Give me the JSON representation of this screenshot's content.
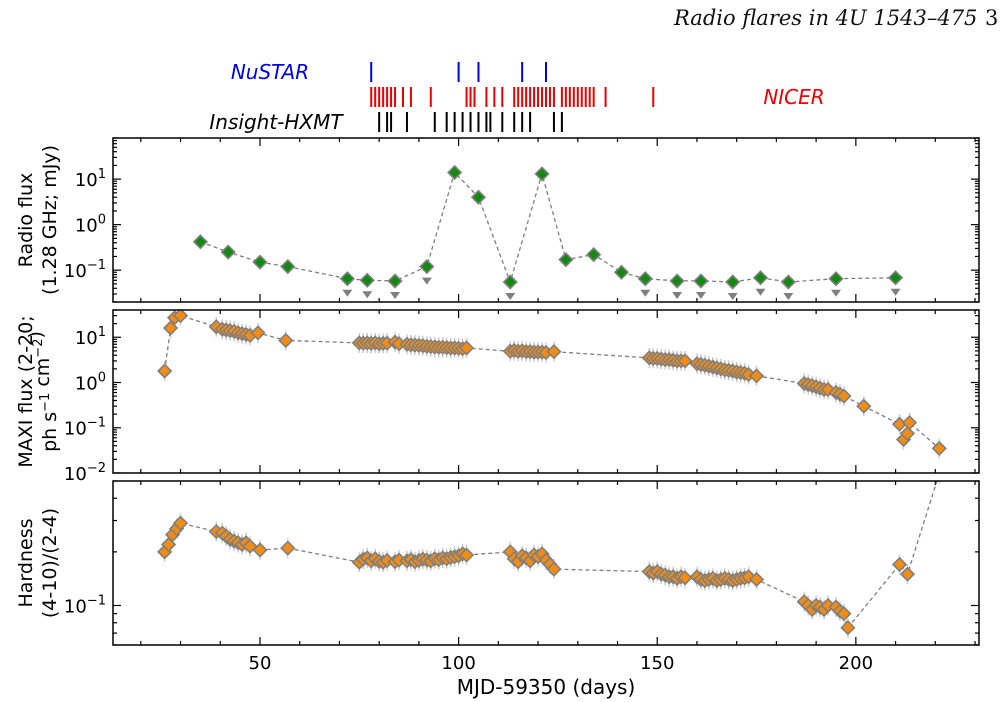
{
  "header": {
    "running_title": "Radio flares in 4U 1543–475",
    "page_number": "3"
  },
  "colors": {
    "nustar": "#0000ee",
    "nicer": "#ee0000",
    "hxmt": "#000000",
    "radio_marker": "#128a12",
    "xray_marker": "#f28c14",
    "marker_edge": "#7f7f7f",
    "errorbar": "#cccccc"
  },
  "chart_data": {
    "type": "scatter",
    "xlabel": "MJD-59350 (days)",
    "xlim": [
      13,
      231
    ],
    "xticks": [
      50,
      100,
      150,
      200
    ],
    "xticklabels": [
      "50",
      "100",
      "150",
      "200"
    ],
    "observation_ticks": [
      {
        "name": "NuSTAR",
        "color": "#0000ee",
        "x": [
          78,
          100,
          105,
          116,
          122
        ]
      },
      {
        "name": "NICER",
        "color": "#ee0000",
        "x": [
          78,
          79,
          80,
          81,
          82,
          83,
          84,
          86,
          88,
          93,
          102,
          103,
          104,
          107,
          109,
          111,
          114,
          115,
          116,
          117,
          118,
          119,
          120,
          121,
          122,
          123,
          124,
          126,
          127,
          128,
          129,
          130,
          131,
          132,
          133,
          134,
          137,
          149
        ]
      },
      {
        "name": "Insight-HXMT",
        "color": "#000000",
        "x": [
          80,
          82,
          83,
          87,
          94,
          97,
          99,
          101,
          103,
          105,
          107,
          108,
          111,
          114,
          116,
          118,
          124,
          126
        ]
      }
    ],
    "panels": [
      {
        "id": "radio",
        "ylabel": [
          "Radio flux",
          "(1.28 GHz; mJy)"
        ],
        "yscale": "log",
        "ylim": [
          0.02,
          80
        ],
        "yticks": [
          0.1,
          1,
          10
        ],
        "yticklabels": [
          "10^-1",
          "10^0",
          "10^1"
        ],
        "marker_color": "#128a12",
        "points": [
          [
            35,
            0.42
          ],
          [
            42,
            0.25
          ],
          [
            50,
            0.15
          ],
          [
            57,
            0.12
          ],
          [
            72,
            0.065
          ],
          [
            77,
            0.06
          ],
          [
            84,
            0.058
          ],
          [
            92,
            0.12
          ],
          [
            99,
            14
          ],
          [
            105,
            4.0
          ],
          [
            113,
            0.055
          ],
          [
            121,
            13
          ],
          [
            127,
            0.17
          ],
          [
            134,
            0.22
          ],
          [
            141,
            0.09
          ],
          [
            147,
            0.065
          ],
          [
            155,
            0.058
          ],
          [
            161,
            0.058
          ],
          [
            169,
            0.055
          ],
          [
            176,
            0.068
          ],
          [
            183,
            0.055
          ],
          [
            195,
            0.065
          ],
          [
            210,
            0.068
          ]
        ],
        "upper_limits": [
          72,
          77,
          84,
          92,
          113,
          147,
          155,
          161,
          169,
          176,
          183,
          195,
          210
        ]
      },
      {
        "id": "maxi",
        "ylabel": [
          "MAXI flux (2-20;",
          "ph s^-1 cm^-2)"
        ],
        "yscale": "log",
        "ylim": [
          0.01,
          40
        ],
        "yticks": [
          0.01,
          0.1,
          1,
          10
        ],
        "yticklabels": [
          "10^-2",
          "10^-1",
          "10^0",
          "10^1"
        ],
        "marker_color": "#f28c14",
        "points": [
          [
            26,
            1.8
          ],
          [
            27.5,
            16
          ],
          [
            28.5,
            27
          ],
          [
            30,
            30
          ],
          [
            39,
            17
          ],
          [
            40.5,
            15
          ],
          [
            41.5,
            14.5
          ],
          [
            42.5,
            14
          ],
          [
            43.5,
            13.5
          ],
          [
            44.5,
            12.5
          ],
          [
            45.5,
            12
          ],
          [
            46.5,
            11.5
          ],
          [
            47.5,
            11
          ],
          [
            49.5,
            12.5
          ],
          [
            56.5,
            8.5
          ],
          [
            75,
            7.5
          ],
          [
            76,
            7.4
          ],
          [
            77,
            7.5
          ],
          [
            78,
            7.3
          ],
          [
            79,
            7.5
          ],
          [
            80,
            7.2
          ],
          [
            81,
            7.3
          ],
          [
            82,
            7.4
          ],
          [
            84,
            7.8
          ],
          [
            85,
            7.2
          ],
          [
            87,
            7.0
          ],
          [
            88,
            6.8
          ],
          [
            89,
            6.7
          ],
          [
            90,
            6.6
          ],
          [
            91,
            6.5
          ],
          [
            92,
            6.3
          ],
          [
            93,
            6.2
          ],
          [
            94,
            6.1
          ],
          [
            95,
            6.0
          ],
          [
            96,
            6.0
          ],
          [
            97,
            5.9
          ],
          [
            98,
            5.8
          ],
          [
            99,
            5.8
          ],
          [
            100,
            5.7
          ],
          [
            101,
            5.6
          ],
          [
            102,
            5.8
          ],
          [
            113,
            4.9
          ],
          [
            114,
            5.1
          ],
          [
            115,
            4.9
          ],
          [
            116,
            5.0
          ],
          [
            117,
            4.8
          ],
          [
            118,
            4.8
          ],
          [
            119,
            4.7
          ],
          [
            120,
            4.7
          ],
          [
            121,
            4.7
          ],
          [
            122,
            4.6
          ],
          [
            124,
            4.8
          ],
          [
            148,
            3.5
          ],
          [
            149,
            3.4
          ],
          [
            150,
            3.4
          ],
          [
            151,
            3.3
          ],
          [
            152,
            3.2
          ],
          [
            153,
            3.2
          ],
          [
            154,
            3.1
          ],
          [
            155,
            3.0
          ],
          [
            156,
            3.0
          ],
          [
            157,
            3.0
          ],
          [
            160,
            2.6
          ],
          [
            161,
            2.5
          ],
          [
            162,
            2.4
          ],
          [
            163,
            2.3
          ],
          [
            164,
            2.2
          ],
          [
            165,
            2.1
          ],
          [
            166,
            2.0
          ],
          [
            167,
            1.9
          ],
          [
            168,
            1.85
          ],
          [
            169,
            1.8
          ],
          [
            170,
            1.7
          ],
          [
            171,
            1.65
          ],
          [
            172,
            1.6
          ],
          [
            173,
            1.5
          ],
          [
            175,
            1.4
          ],
          [
            187,
            0.95
          ],
          [
            188,
            0.9
          ],
          [
            189,
            0.85
          ],
          [
            190,
            0.8
          ],
          [
            191,
            0.75
          ],
          [
            192,
            0.7
          ],
          [
            193,
            0.7
          ],
          [
            195,
            0.6
          ],
          [
            196,
            0.55
          ],
          [
            197,
            0.5
          ],
          [
            202,
            0.3
          ],
          [
            211,
            0.12
          ],
          [
            212,
            0.055
          ],
          [
            213,
            0.075
          ],
          [
            213.5,
            0.13
          ],
          [
            221,
            0.035
          ]
        ]
      },
      {
        "id": "hardness",
        "ylabel": [
          "Hardness",
          "(4-10)/(2-4)"
        ],
        "yscale": "log",
        "ylim": [
          0.06,
          0.5
        ],
        "yticks": [
          0.1
        ],
        "yticklabels": [
          "10^-1"
        ],
        "marker_color": "#f28c14",
        "points": [
          [
            26,
            0.2
          ],
          [
            27,
            0.22
          ],
          [
            28,
            0.25
          ],
          [
            29,
            0.27
          ],
          [
            30,
            0.29
          ],
          [
            39,
            0.26
          ],
          [
            40.5,
            0.255
          ],
          [
            41.5,
            0.245
          ],
          [
            42.5,
            0.235
          ],
          [
            43.5,
            0.23
          ],
          [
            44.5,
            0.225
          ],
          [
            45.5,
            0.22
          ],
          [
            46.5,
            0.225
          ],
          [
            47.5,
            0.215
          ],
          [
            50,
            0.205
          ],
          [
            57,
            0.21
          ],
          [
            75,
            0.175
          ],
          [
            76,
            0.182
          ],
          [
            77,
            0.185
          ],
          [
            78,
            0.178
          ],
          [
            79,
            0.183
          ],
          [
            80,
            0.177
          ],
          [
            81,
            0.175
          ],
          [
            82,
            0.179
          ],
          [
            84,
            0.176
          ],
          [
            85,
            0.18
          ],
          [
            87,
            0.178
          ],
          [
            88,
            0.181
          ],
          [
            89,
            0.176
          ],
          [
            90,
            0.179
          ],
          [
            91,
            0.182
          ],
          [
            92,
            0.18
          ],
          [
            93,
            0.178
          ],
          [
            94,
            0.183
          ],
          [
            95,
            0.181
          ],
          [
            96,
            0.185
          ],
          [
            97,
            0.183
          ],
          [
            98,
            0.186
          ],
          [
            99,
            0.188
          ],
          [
            100,
            0.19
          ],
          [
            101,
            0.195
          ],
          [
            102,
            0.192
          ],
          [
            113,
            0.2
          ],
          [
            114,
            0.183
          ],
          [
            115,
            0.176
          ],
          [
            116,
            0.19
          ],
          [
            117,
            0.185
          ],
          [
            118,
            0.178
          ],
          [
            119,
            0.192
          ],
          [
            120,
            0.188
          ],
          [
            121,
            0.195
          ],
          [
            122,
            0.18
          ],
          [
            123,
            0.17
          ],
          [
            124,
            0.16
          ],
          [
            148,
            0.155
          ],
          [
            149,
            0.152
          ],
          [
            150,
            0.155
          ],
          [
            151,
            0.15
          ],
          [
            152,
            0.148
          ],
          [
            153,
            0.145
          ],
          [
            154,
            0.145
          ],
          [
            155,
            0.142
          ],
          [
            156,
            0.145
          ],
          [
            157,
            0.143
          ],
          [
            160,
            0.145
          ],
          [
            161,
            0.14
          ],
          [
            162,
            0.138
          ],
          [
            163,
            0.14
          ],
          [
            164,
            0.142
          ],
          [
            165,
            0.138
          ],
          [
            166,
            0.14
          ],
          [
            167,
            0.142
          ],
          [
            168,
            0.14
          ],
          [
            169,
            0.138
          ],
          [
            170,
            0.14
          ],
          [
            171,
            0.142
          ],
          [
            172,
            0.143
          ],
          [
            173,
            0.145
          ],
          [
            175,
            0.14
          ],
          [
            187,
            0.105
          ],
          [
            188,
            0.1
          ],
          [
            189,
            0.095
          ],
          [
            190,
            0.1
          ],
          [
            191,
            0.098
          ],
          [
            192,
            0.095
          ],
          [
            193,
            0.1
          ],
          [
            195,
            0.098
          ],
          [
            196,
            0.093
          ],
          [
            197,
            0.09
          ],
          [
            198,
            0.075
          ],
          [
            211,
            0.17
          ],
          [
            213,
            0.15
          ],
          [
            221,
            0.55
          ]
        ]
      }
    ]
  }
}
